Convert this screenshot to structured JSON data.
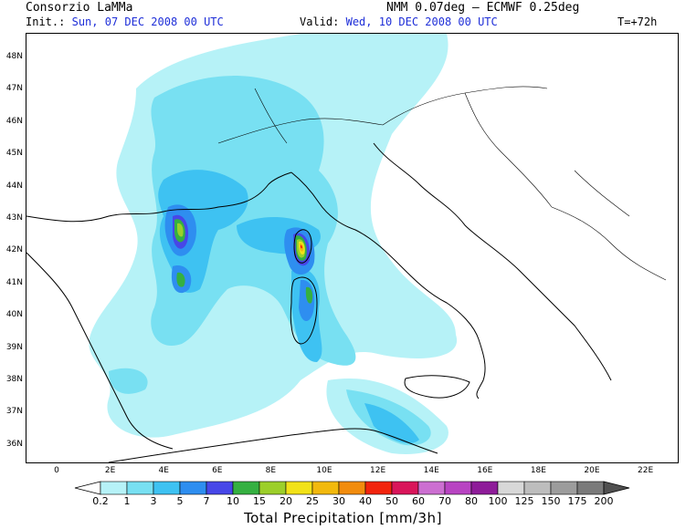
{
  "header": {
    "org": "Consorzio LaMMa",
    "model": "NMM 0.07deg – ECMWF 0.25deg",
    "init_label": "Init.:",
    "init_value": "Sun, 07 DEC 2008   00 UTC",
    "valid_label": "Valid:",
    "valid_value": "Wed, 10 DEC 2008   00 UTC",
    "lead": "T=+72h"
  },
  "axes": {
    "lat_ticks": [
      "48N",
      "47N",
      "46N",
      "45N",
      "44N",
      "43N",
      "42N",
      "41N",
      "40N",
      "39N",
      "38N",
      "37N",
      "36N"
    ],
    "lon_ticks": [
      "0",
      "2E",
      "4E",
      "6E",
      "8E",
      "10E",
      "12E",
      "14E",
      "16E",
      "18E",
      "20E",
      "22E"
    ]
  },
  "colorbar": {
    "title": "Total Precipitation [mm/3h]",
    "labels": [
      "0.2",
      "1",
      "3",
      "5",
      "7",
      "10",
      "15",
      "20",
      "25",
      "30",
      "40",
      "50",
      "60",
      "70",
      "80",
      "100",
      "125",
      "150",
      "175",
      "200"
    ],
    "colors": [
      "#ffffff",
      "#b6f2f7",
      "#78e0f2",
      "#3ec2f2",
      "#2e8ef0",
      "#4747e8",
      "#35b041",
      "#9ccf2a",
      "#f2e218",
      "#f2b90d",
      "#f28c0d",
      "#f2240d",
      "#d9155a",
      "#cc6fd1",
      "#b844c2",
      "#8e1c99",
      "#d8d8d8",
      "#bdbdbd",
      "#9c9c9c",
      "#7a7a7a",
      "#505050"
    ]
  },
  "map": {
    "colors": {
      "c1": "#b6f2f7",
      "c2": "#78e0f2",
      "c3": "#3ec2f2",
      "c4": "#2e8ef0",
      "c5": "#4747e8",
      "c6": "#35b041",
      "c7": "#9ccf2a",
      "c8": "#f2e218",
      "c9": "#f2b90d",
      "c10": "#f2240d"
    }
  }
}
